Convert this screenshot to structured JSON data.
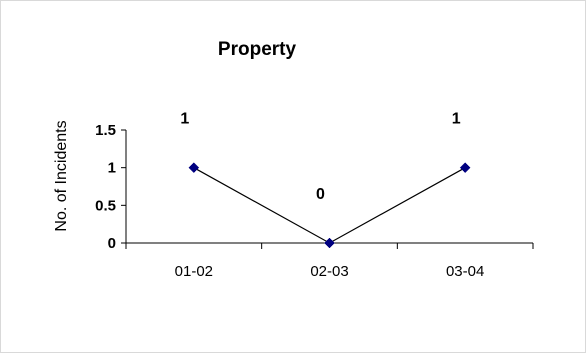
{
  "chart_data": {
    "type": "line",
    "title": "Property",
    "ylabel": "No. of Incidents",
    "xlabel": "",
    "categories": [
      "01-02",
      "02-03",
      "03-04"
    ],
    "values": [
      1,
      0,
      1
    ],
    "data_labels": [
      "1",
      "0",
      "1"
    ],
    "ylim": [
      0,
      1.5
    ],
    "yticks": [
      0,
      0.5,
      1,
      1.5
    ],
    "ytick_labels": [
      "0",
      "0.5",
      "1",
      "1.5"
    ],
    "grid": false,
    "legend": "none",
    "colors": {
      "line": "#000000",
      "marker": "#000080"
    }
  }
}
